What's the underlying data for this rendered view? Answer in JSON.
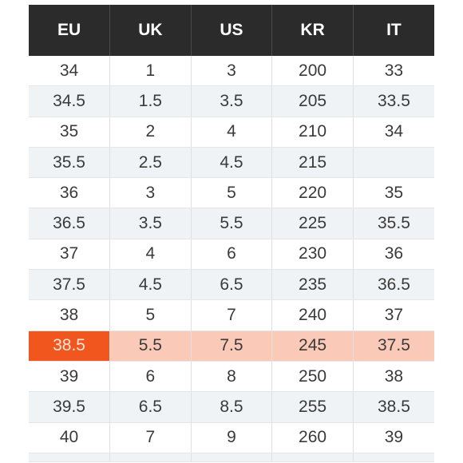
{
  "table": {
    "headers": [
      "EU",
      "UK",
      "US",
      "KR",
      "IT"
    ],
    "rows": [
      [
        "34",
        "1",
        "3",
        "200",
        "33"
      ],
      [
        "34.5",
        "1.5",
        "3.5",
        "205",
        "33.5"
      ],
      [
        "35",
        "2",
        "4",
        "210",
        "34"
      ],
      [
        "35.5",
        "2.5",
        "4.5",
        "215",
        ""
      ],
      [
        "36",
        "3",
        "5",
        "220",
        "35"
      ],
      [
        "36.5",
        "3.5",
        "5.5",
        "225",
        "35.5"
      ],
      [
        "37",
        "4",
        "6",
        "230",
        "36"
      ],
      [
        "37.5",
        "4.5",
        "6.5",
        "235",
        "36.5"
      ],
      [
        "38",
        "5",
        "7",
        "240",
        "37"
      ],
      [
        "38.5",
        "5.5",
        "7.5",
        "245",
        "37.5"
      ],
      [
        "39",
        "6",
        "8",
        "250",
        "38"
      ],
      [
        "39.5",
        "6.5",
        "8.5",
        "255",
        "38.5"
      ],
      [
        "40",
        "7",
        "9",
        "260",
        "39"
      ]
    ],
    "highlighted_row_index": 9
  },
  "colors": {
    "header_background": "#2b2b2b",
    "header_text": "#ffffff",
    "stripe": "#eff3f6",
    "highlight_row": "#fbc9b8",
    "highlight_accent": "#f1561f"
  }
}
